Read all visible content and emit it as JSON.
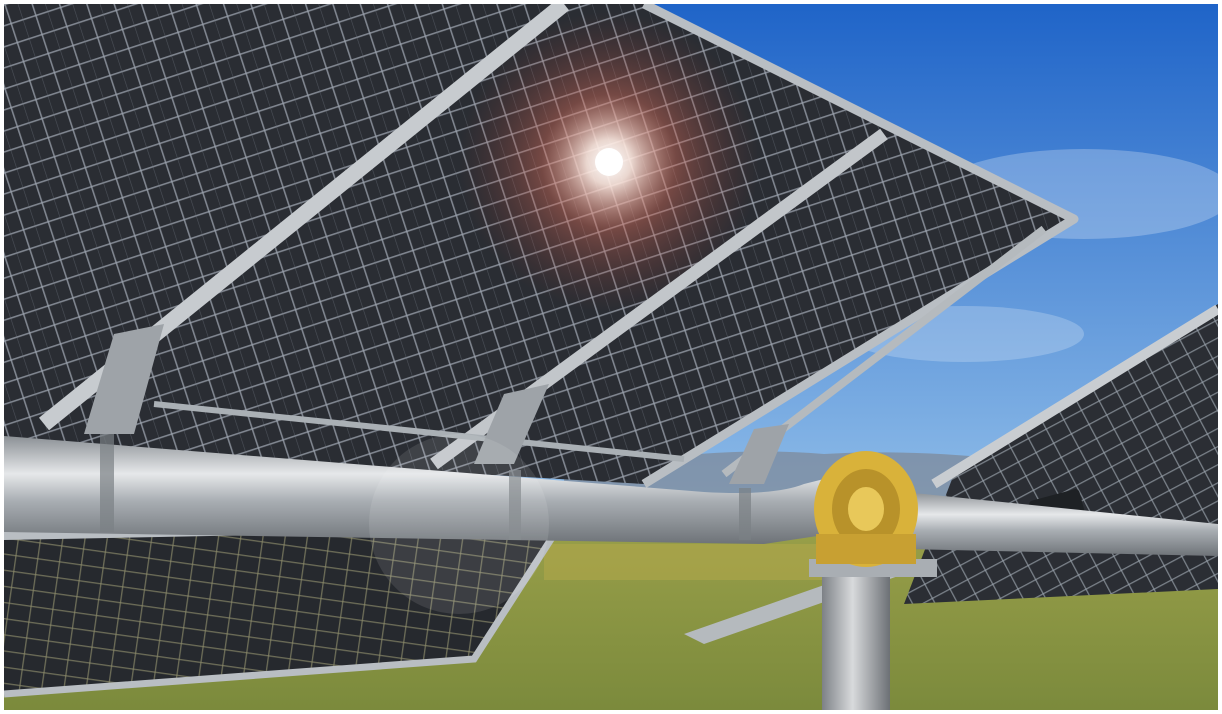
{
  "scene": {
    "subject": "bifacial-solar-tracker",
    "colors": {
      "sky_top": "#1f64c8",
      "sky_bottom": "#9cc7ec",
      "grass": "#7b8a3c",
      "grass_far": "#9aa04a",
      "panel_cell": "#2a2d33",
      "panel_grid": "#9aa3ad",
      "frame": "#b9bec3",
      "tube_light": "#e6e8ea",
      "tube_dark": "#6e7378",
      "gearbox": "#d9b23a",
      "sun_glow": "#ffffff"
    }
  }
}
